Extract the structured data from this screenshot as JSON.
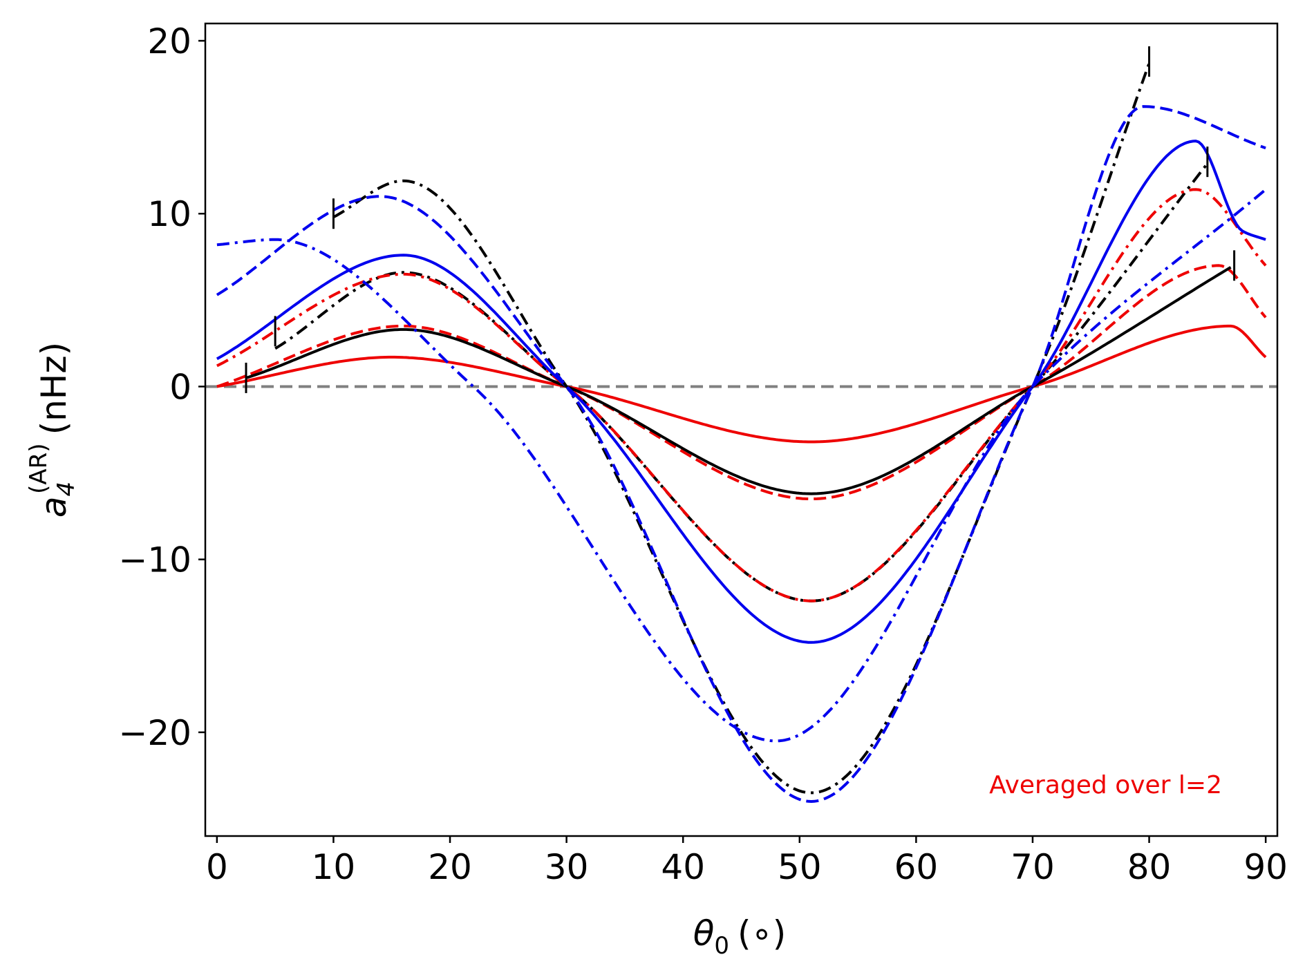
{
  "chart_data": {
    "type": "line",
    "title": "",
    "xlabel": {
      "symbol": "θ",
      "sub": "0",
      "unit": "(∘)"
    },
    "ylabel": {
      "symbol": "a",
      "sub": "4",
      "sup": "(AR)",
      "unit": "(nHz)"
    },
    "xlim": [
      -1,
      91
    ],
    "ylim": [
      -26,
      21
    ],
    "xticks": [
      0,
      10,
      20,
      30,
      40,
      50,
      60,
      70,
      80,
      90
    ],
    "yticks": [
      -20,
      -10,
      0,
      10,
      20
    ],
    "ytick_labels": [
      "−20",
      "−10",
      "0",
      "10",
      "20"
    ],
    "reference_line": {
      "y": 0,
      "color": "#808080",
      "style": "dashed"
    },
    "annotation": {
      "text": "Averaged over l=2",
      "color": "#ee0000"
    },
    "series": [
      {
        "name": "red-solid",
        "color": "#ee0000",
        "style": "solid",
        "x": [
          0,
          15,
          30,
          51,
          70,
          87,
          90
        ],
        "y": [
          0,
          1.7,
          0,
          -3.2,
          0,
          3.5,
          1.7
        ]
      },
      {
        "name": "red-dashed",
        "color": "#ee0000",
        "style": "dashed",
        "x": [
          0,
          16,
          30,
          51,
          70,
          86,
          90
        ],
        "y": [
          0,
          3.5,
          0,
          -6.5,
          0,
          7.0,
          4.0
        ]
      },
      {
        "name": "black-solid",
        "color": "#000000",
        "style": "solid",
        "x": [
          2.5,
          16,
          30,
          51,
          70,
          87
        ],
        "y": [
          0.5,
          3.3,
          0,
          -6.2,
          0,
          6.9
        ]
      },
      {
        "name": "black-dashdot-mid",
        "color": "#000000",
        "style": "dashdot",
        "x": [
          5,
          16,
          30,
          51,
          70,
          85
        ],
        "y": [
          2.2,
          6.6,
          0,
          -12.4,
          0,
          12.9
        ]
      },
      {
        "name": "red-dashdot",
        "color": "#ee0000",
        "style": "dashdot",
        "x": [
          0,
          16,
          30,
          51,
          70,
          84,
          90
        ],
        "y": [
          1.2,
          6.5,
          0,
          -12.4,
          0,
          11.4,
          7.0
        ]
      },
      {
        "name": "blue-solid",
        "color": "#0000ee",
        "style": "solid",
        "x": [
          0,
          16,
          30,
          51,
          70,
          84,
          88,
          90
        ],
        "y": [
          1.6,
          7.6,
          0,
          -14.8,
          0,
          14.2,
          9.0,
          8.5
        ]
      },
      {
        "name": "black-dashdot-large",
        "color": "#000000",
        "style": "dashdot",
        "x": [
          10,
          16,
          30,
          51,
          70,
          80
        ],
        "y": [
          9.8,
          11.9,
          0,
          -23.5,
          0,
          18.7
        ]
      },
      {
        "name": "blue-dashed",
        "color": "#0000ee",
        "style": "dashed",
        "x": [
          0,
          14,
          30,
          51,
          70,
          79.5,
          90
        ],
        "y": [
          5.3,
          11.0,
          0,
          -24.0,
          0,
          16.2,
          13.8
        ]
      },
      {
        "name": "blue-dashdot",
        "color": "#0000ee",
        "style": "dashdot",
        "x": [
          0,
          5,
          22,
          48,
          70,
          90
        ],
        "y": [
          8.2,
          8.5,
          0,
          -20.5,
          0,
          11.4
        ]
      }
    ],
    "markers": [
      {
        "x": 2.5,
        "y": 0.5
      },
      {
        "x": 5,
        "y": 3.2
      },
      {
        "x": 10,
        "y": 10.0
      },
      {
        "x": 80,
        "y": 18.8
      },
      {
        "x": 85,
        "y": 13.0
      },
      {
        "x": 87.3,
        "y": 7.0
      }
    ]
  }
}
